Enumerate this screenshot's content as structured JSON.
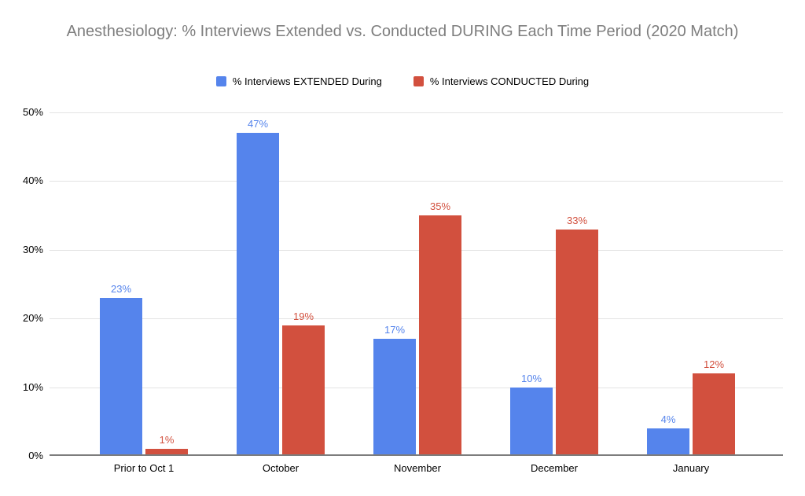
{
  "chart_data": {
    "type": "bar",
    "title": "Anesthesiology: % Interviews Extended vs. Conducted DURING Each Time Period (2020 Match)",
    "categories": [
      "Prior to Oct 1",
      "October",
      "November",
      "December",
      "January"
    ],
    "series": [
      {
        "name": "% Interviews EXTENDED During",
        "color": "#5584EC",
        "values": [
          23,
          47,
          17,
          10,
          4
        ],
        "labels": [
          "23%",
          "47%",
          "17%",
          "10%",
          "4%"
        ]
      },
      {
        "name": "% Interviews CONDUCTED During",
        "color": "#D2503E",
        "values": [
          1,
          19,
          35,
          33,
          12
        ],
        "labels": [
          "1%",
          "19%",
          "35%",
          "33%",
          "12%"
        ]
      }
    ],
    "xlabel": "",
    "ylabel": "",
    "ylim": [
      0,
      50
    ],
    "yticks": [
      {
        "value": 0,
        "label": "0%"
      },
      {
        "value": 10,
        "label": "10%"
      },
      {
        "value": 20,
        "label": "20%"
      },
      {
        "value": 30,
        "label": "30%"
      },
      {
        "value": 40,
        "label": "40%"
      },
      {
        "value": 50,
        "label": "50%"
      }
    ],
    "grid": true,
    "legend_position": "top",
    "data_label_format": "{value}%",
    "colors": {
      "title_text": "#7e7e7e",
      "tick_label_text": "#000000",
      "category_label_text": "#000000",
      "legend_text": "#000000",
      "axis_line": "#7d7d7d",
      "gridline": "#e3e3e3",
      "background": "#ffffff"
    }
  }
}
